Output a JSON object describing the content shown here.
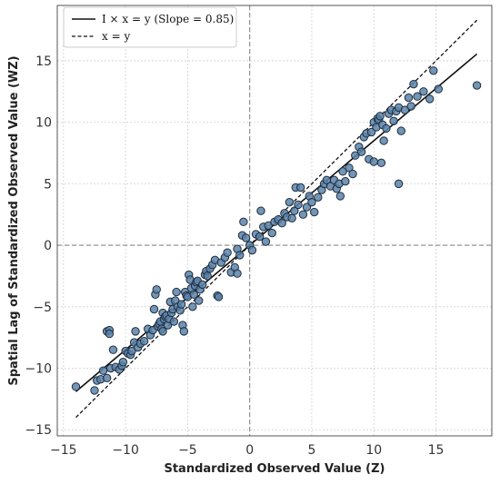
{
  "chart_data": {
    "type": "scatter",
    "xlabel": "Standardized Observed Value (Z)",
    "ylabel": "Spatial Lag of Standardized Observed Value (WZ)",
    "xlim": [
      -15.5,
      19.5
    ],
    "ylim": [
      -15.5,
      19.5
    ],
    "xticks": [
      -15,
      -10,
      -5,
      0,
      5,
      10,
      15
    ],
    "yticks": [
      -15,
      -10,
      -5,
      0,
      5,
      10,
      15
    ],
    "x_tick_labels": [
      "−15",
      "−10",
      "−5",
      "0",
      "5",
      "10",
      "15"
    ],
    "y_tick_labels": [
      "−15",
      "−10",
      "−5",
      "0",
      "5",
      "10",
      "15"
    ],
    "grid": true,
    "reference_lines": {
      "x": 0,
      "y": 0,
      "style": "dashed"
    },
    "legend_position": "top-left",
    "lines": [
      {
        "label": "I × x = y (Slope = 0.85)",
        "style": "solid",
        "color": "#111111",
        "slope": 0.85,
        "x_range": [
          -14,
          18.3
        ]
      },
      {
        "label": "x = y",
        "style": "dashed",
        "color": "#111111",
        "slope": 1.0,
        "x_range": [
          -14,
          18.3
        ]
      }
    ],
    "points_color": "#5b82a9",
    "points": [
      [
        -14.0,
        -11.5
      ],
      [
        -12.5,
        -11.8
      ],
      [
        -12.3,
        -11.0
      ],
      [
        -12.0,
        -10.9
      ],
      [
        -11.8,
        -10.2
      ],
      [
        -11.5,
        -10.8
      ],
      [
        -11.5,
        -7.0
      ],
      [
        -11.3,
        -6.9
      ],
      [
        -11.3,
        -7.2
      ],
      [
        -11.2,
        -10.0
      ],
      [
        -11.0,
        -8.5
      ],
      [
        -10.8,
        -9.9
      ],
      [
        -10.5,
        -10.1
      ],
      [
        -10.3,
        -9.8
      ],
      [
        -10.2,
        -9.5
      ],
      [
        -10.0,
        -8.6
      ],
      [
        -9.8,
        -8.8
      ],
      [
        -9.6,
        -8.9
      ],
      [
        -9.5,
        -8.6
      ],
      [
        -9.3,
        -7.9
      ],
      [
        -9.2,
        -7.0
      ],
      [
        -9.0,
        -8.3
      ],
      [
        -8.8,
        -8.0
      ],
      [
        -8.5,
        -7.8
      ],
      [
        -8.2,
        -6.8
      ],
      [
        -8.0,
        -7.3
      ],
      [
        -7.8,
        -6.9
      ],
      [
        -7.7,
        -5.2
      ],
      [
        -7.6,
        -4.0
      ],
      [
        -7.5,
        -3.6
      ],
      [
        -7.4,
        -6.6
      ],
      [
        -7.3,
        -6.4
      ],
      [
        -7.2,
        -6.2
      ],
      [
        -7.1,
        -6.8
      ],
      [
        -7.0,
        -7.0
      ],
      [
        -7.0,
        -5.5
      ],
      [
        -6.9,
        -6.0
      ],
      [
        -6.8,
        -5.8
      ],
      [
        -6.7,
        -5.7
      ],
      [
        -6.6,
        -6.5
      ],
      [
        -6.5,
        -6.0
      ],
      [
        -6.4,
        -4.6
      ],
      [
        -6.3,
        -5.5
      ],
      [
        -6.2,
        -5.2
      ],
      [
        -6.1,
        -6.2
      ],
      [
        -6.0,
        -4.5
      ],
      [
        -5.9,
        -3.8
      ],
      [
        -5.8,
        -5.0
      ],
      [
        -5.6,
        -5.3
      ],
      [
        -5.5,
        -4.8
      ],
      [
        -5.4,
        -6.5
      ],
      [
        -5.3,
        -7.0
      ],
      [
        -5.2,
        -3.8
      ],
      [
        -5.1,
        -4.1
      ],
      [
        -5.0,
        -4.2
      ],
      [
        -4.9,
        -2.4
      ],
      [
        -4.8,
        -2.8
      ],
      [
        -4.7,
        -3.5
      ],
      [
        -4.6,
        -5.0
      ],
      [
        -4.5,
        -4.0
      ],
      [
        -4.4,
        -3.3
      ],
      [
        -4.3,
        -3.0
      ],
      [
        -4.2,
        -2.9
      ],
      [
        -4.1,
        -4.5
      ],
      [
        -4.0,
        -3.6
      ],
      [
        -3.8,
        -3.2
      ],
      [
        -3.6,
        -2.4
      ],
      [
        -3.5,
        -2.1
      ],
      [
        -3.4,
        -2.5
      ],
      [
        -3.2,
        -1.9
      ],
      [
        -3.0,
        -1.6
      ],
      [
        -2.8,
        -1.2
      ],
      [
        -2.6,
        -4.1
      ],
      [
        -2.5,
        -4.2
      ],
      [
        -2.3,
        -1.4
      ],
      [
        -2.0,
        -1.0
      ],
      [
        -1.8,
        -0.6
      ],
      [
        -1.5,
        -2.2
      ],
      [
        -1.2,
        -1.8
      ],
      [
        -1.0,
        -0.3
      ],
      [
        -1.0,
        -2.3
      ],
      [
        -0.8,
        -0.8
      ],
      [
        -0.6,
        0.8
      ],
      [
        -0.5,
        1.9
      ],
      [
        -0.3,
        0.6
      ],
      [
        0.0,
        0.0
      ],
      [
        0.2,
        -0.4
      ],
      [
        0.5,
        0.9
      ],
      [
        0.8,
        0.7
      ],
      [
        0.9,
        2.8
      ],
      [
        1.1,
        1.5
      ],
      [
        1.3,
        0.3
      ],
      [
        1.5,
        1.6
      ],
      [
        1.8,
        1.0
      ],
      [
        2.0,
        1.9
      ],
      [
        2.3,
        2.1
      ],
      [
        2.6,
        1.8
      ],
      [
        2.8,
        2.6
      ],
      [
        3.0,
        2.3
      ],
      [
        3.2,
        3.5
      ],
      [
        3.4,
        2.2
      ],
      [
        3.6,
        2.8
      ],
      [
        3.7,
        4.7
      ],
      [
        3.9,
        3.3
      ],
      [
        4.1,
        4.7
      ],
      [
        4.3,
        2.5
      ],
      [
        4.6,
        3.1
      ],
      [
        4.8,
        4.0
      ],
      [
        5.0,
        3.5
      ],
      [
        5.2,
        2.7
      ],
      [
        5.5,
        3.9
      ],
      [
        5.8,
        4.5
      ],
      [
        6.0,
        5.0
      ],
      [
        6.2,
        5.3
      ],
      [
        6.5,
        4.8
      ],
      [
        6.8,
        5.3
      ],
      [
        7.0,
        4.6
      ],
      [
        7.2,
        5.0
      ],
      [
        7.3,
        4.0
      ],
      [
        7.5,
        6.0
      ],
      [
        7.7,
        5.2
      ],
      [
        8.0,
        6.3
      ],
      [
        8.3,
        5.8
      ],
      [
        8.5,
        7.3
      ],
      [
        8.8,
        8.0
      ],
      [
        9.0,
        7.6
      ],
      [
        9.2,
        8.8
      ],
      [
        9.4,
        9.1
      ],
      [
        9.6,
        7.0
      ],
      [
        9.8,
        9.2
      ],
      [
        10.0,
        6.8
      ],
      [
        10.0,
        10.0
      ],
      [
        10.2,
        9.6
      ],
      [
        10.3,
        10.3
      ],
      [
        10.4,
        10.2
      ],
      [
        10.5,
        10.5
      ],
      [
        10.6,
        6.7
      ],
      [
        10.7,
        9.8
      ],
      [
        10.8,
        8.5
      ],
      [
        11.0,
        9.5
      ],
      [
        11.2,
        10.7
      ],
      [
        11.4,
        11.0
      ],
      [
        11.6,
        10.1
      ],
      [
        11.8,
        10.9
      ],
      [
        12.0,
        11.2
      ],
      [
        12.0,
        5.0
      ],
      [
        12.2,
        9.3
      ],
      [
        12.5,
        11.0
      ],
      [
        12.8,
        12.0
      ],
      [
        13.0,
        11.3
      ],
      [
        13.2,
        13.1
      ],
      [
        13.5,
        12.1
      ],
      [
        14.0,
        12.5
      ],
      [
        14.5,
        11.9
      ],
      [
        14.8,
        14.2
      ],
      [
        15.2,
        12.7
      ],
      [
        18.3,
        13.0
      ]
    ]
  }
}
